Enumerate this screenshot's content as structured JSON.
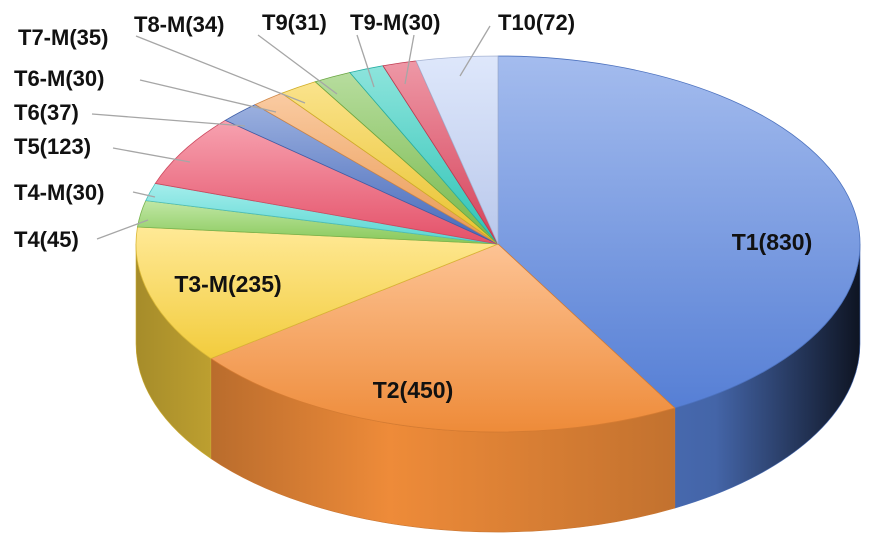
{
  "chart_data": {
    "type": "pie",
    "title": "",
    "slices": [
      {
        "label": "T1(830)",
        "name": "T1",
        "value": 830,
        "color": "#5a86e0"
      },
      {
        "label": "T2(450)",
        "name": "T2",
        "value": 450,
        "color": "#fb923c"
      },
      {
        "label": "T3-M(235)",
        "name": "T3-M",
        "value": 235,
        "color": "#ffd740"
      },
      {
        "label": "T4(45)",
        "name": "T4",
        "value": 45,
        "color": "#8ed35d"
      },
      {
        "label": "T4-M(30)",
        "name": "T4-M",
        "value": 30,
        "color": "#5ce0dc"
      },
      {
        "label": "T5(123)",
        "name": "T5",
        "value": 123,
        "color": "#f0556f"
      },
      {
        "label": "T6(37)",
        "name": "T6",
        "value": 37,
        "color": "#4a6fc4"
      },
      {
        "label": "T6-M(30)",
        "name": "T6-M",
        "value": 30,
        "color": "#f5a055"
      },
      {
        "label": "T7-M(35)",
        "name": "T7-M",
        "value": 35,
        "color": "#f5cc2e"
      },
      {
        "label": "T8-M(34)",
        "name": "T8-M",
        "value": 34,
        "color": "#7cc24e"
      },
      {
        "label": "T9(31)",
        "name": "T9",
        "value": 31,
        "color": "#2fcdc0"
      },
      {
        "label": "T9-M(30)",
        "name": "T9-M",
        "value": 30,
        "color": "#e0445e"
      },
      {
        "label": "T10(72)",
        "name": "T10",
        "value": 72,
        "color": "#c3d3f7"
      }
    ],
    "legend": "none"
  }
}
